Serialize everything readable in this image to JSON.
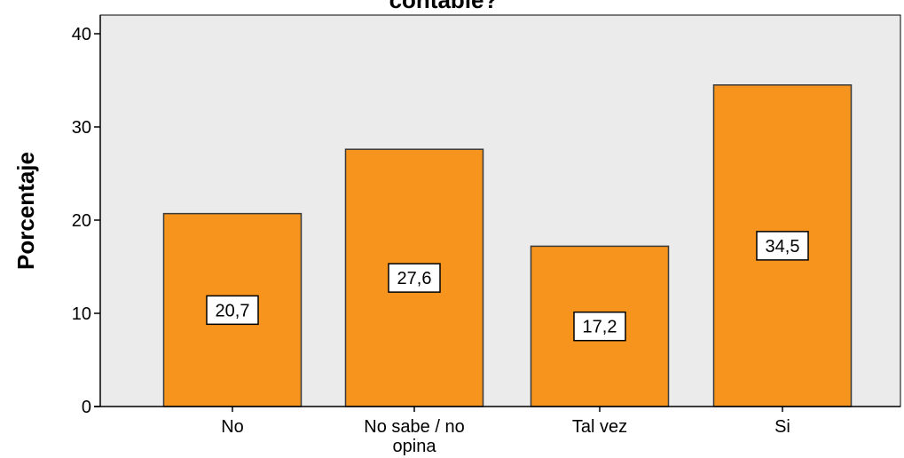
{
  "chart_data": {
    "type": "bar",
    "title": "contable?",
    "xlabel": "",
    "ylabel": "Porcentaje",
    "categories": [
      "No",
      "No sabe / no opina",
      "Tal vez",
      "Si"
    ],
    "category_lines": [
      [
        "No"
      ],
      [
        "No sabe / no",
        "opina"
      ],
      [
        "Tal vez"
      ],
      [
        "Si"
      ]
    ],
    "values": [
      20.7,
      27.6,
      17.2,
      34.5
    ],
    "value_labels": [
      "20,7",
      "27,6",
      "17,2",
      "34,5"
    ],
    "ylim": [
      0,
      42
    ],
    "yticks": [
      0,
      10,
      20,
      30,
      40
    ],
    "grid": false,
    "legend": "none"
  },
  "colors": {
    "bar_fill": "#F7941D",
    "bar_stroke": "#3A3A3A",
    "plot_background": "#EBEBEB",
    "label_box": "#FFFFFF"
  }
}
